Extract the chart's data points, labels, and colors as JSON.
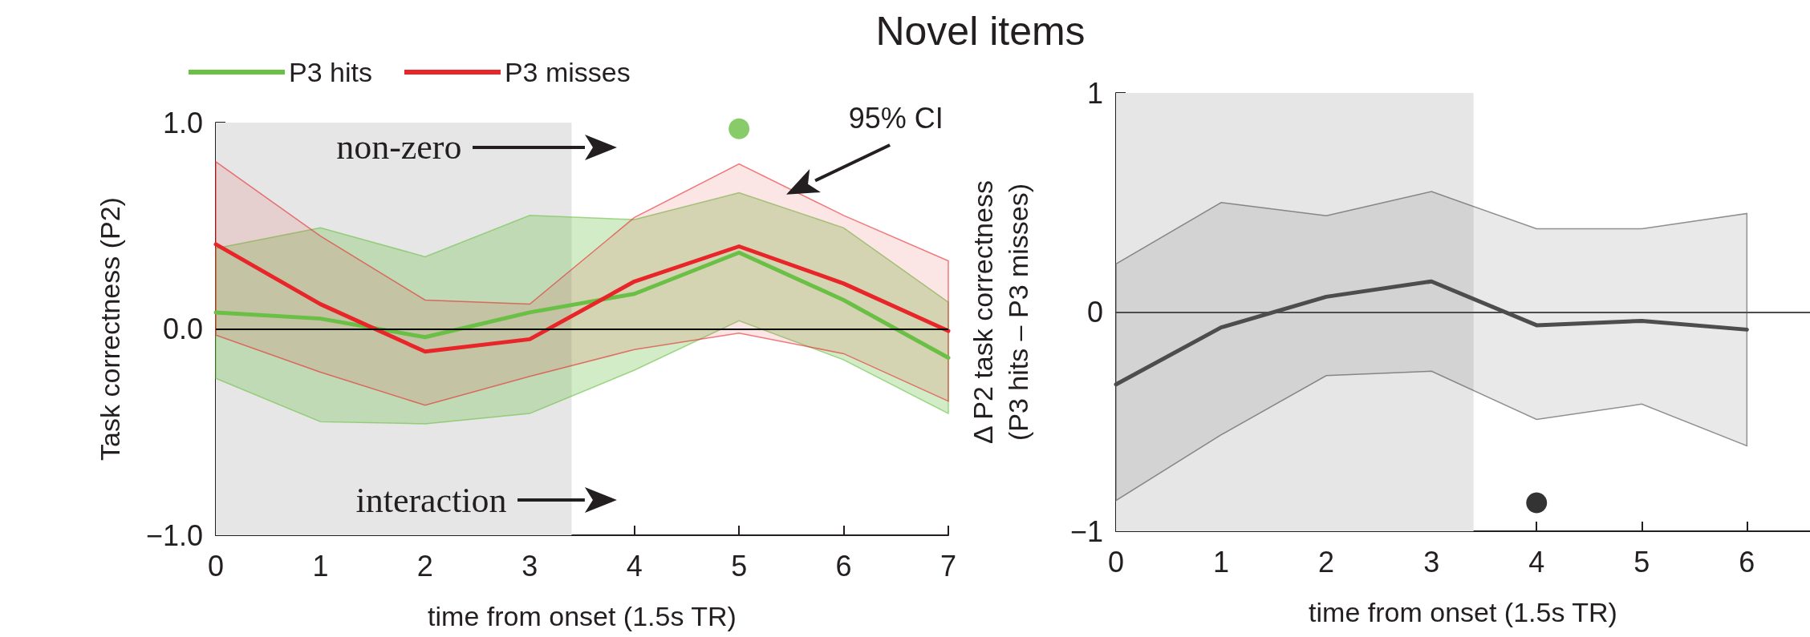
{
  "chart_data": [
    {
      "type": "line",
      "title": "Novel items",
      "xlabel": "time from onset (1.5s TR)",
      "ylabel": "Task correctness (P2)",
      "x": [
        0,
        1,
        2,
        3,
        4,
        5,
        6,
        7
      ],
      "xlim": [
        0,
        7
      ],
      "xticks": [
        0,
        1,
        2,
        3,
        4,
        5,
        6,
        7
      ],
      "ylim": [
        -1,
        1
      ],
      "yticks": [
        {
          "value": -1,
          "label": "−1.0"
        },
        {
          "value": 0,
          "label": "0.0"
        },
        {
          "value": 1,
          "label": "1.0"
        }
      ],
      "legend": "top left",
      "grid": false,
      "series": [
        {
          "name": "P3 hits",
          "color": "#6abf45",
          "values": [
            0.08,
            0.05,
            -0.04,
            0.08,
            0.17,
            0.37,
            0.14,
            -0.14
          ],
          "lower": [
            -0.24,
            -0.45,
            -0.46,
            -0.41,
            -0.2,
            0.04,
            -0.15,
            -0.41
          ],
          "upper": [
            0.39,
            0.49,
            0.35,
            0.55,
            0.53,
            0.66,
            0.49,
            0.13
          ]
        },
        {
          "name": "P3 misses",
          "color": "#e8262a",
          "values": [
            0.41,
            0.12,
            -0.11,
            -0.05,
            0.23,
            0.4,
            0.22,
            -0.01
          ],
          "lower": [
            -0.03,
            -0.21,
            -0.37,
            -0.23,
            -0.1,
            -0.02,
            -0.12,
            -0.35
          ],
          "upper": [
            0.81,
            0.45,
            0.14,
            0.12,
            0.54,
            0.8,
            0.55,
            0.33
          ]
        },
        {
          "type": "scatter",
          "color": "#6abf45",
          "x": [
            5
          ],
          "values": [
            0.97
          ]
        }
      ],
      "ref_lines": [
        {
          "axis": "y",
          "value": 0,
          "color": "#000000"
        }
      ],
      "bands": [
        {
          "axis": "x",
          "from": 0,
          "to": 3.4,
          "color": "#e6e6e6"
        }
      ],
      "annotations": [
        "non-zero",
        "interaction",
        "95% CI"
      ]
    },
    {
      "type": "line",
      "xlabel": "time from onset (1.5s TR)",
      "ylabel": "Δ P2 task correctness\n(P3 hits – P3 misses)",
      "x": [
        0,
        1,
        2,
        3,
        4,
        5,
        6
      ],
      "xlim": [
        0,
        6.6
      ],
      "xticks": [
        0,
        1,
        2,
        3,
        4,
        5,
        6
      ],
      "ylim": [
        -1,
        1
      ],
      "yticks": [
        {
          "value": -1,
          "label": "−1"
        },
        {
          "value": -0.5,
          "label": null
        },
        0,
        {
          "value": 0.5,
          "label": null
        },
        1
      ],
      "grid": false,
      "series": [
        {
          "color": "#4d4d4d",
          "values": [
            -0.33,
            -0.07,
            0.07,
            0.14,
            -0.06,
            -0.04,
            -0.08
          ],
          "lower": [
            -0.86,
            -0.56,
            -0.29,
            -0.27,
            -0.49,
            -0.42,
            -0.61
          ],
          "upper": [
            0.22,
            0.5,
            0.44,
            0.55,
            0.38,
            0.38,
            0.45
          ]
        },
        {
          "type": "scatter",
          "color": "#000000",
          "x": [
            4
          ],
          "values": [
            -0.87
          ]
        }
      ],
      "ref_lines": [
        {
          "axis": "y",
          "value": 0,
          "color": "#4d4d4d"
        }
      ],
      "bands": [
        {
          "axis": "x",
          "from": 0,
          "to": 3.4,
          "color": "#e6e6e6"
        }
      ]
    }
  ]
}
